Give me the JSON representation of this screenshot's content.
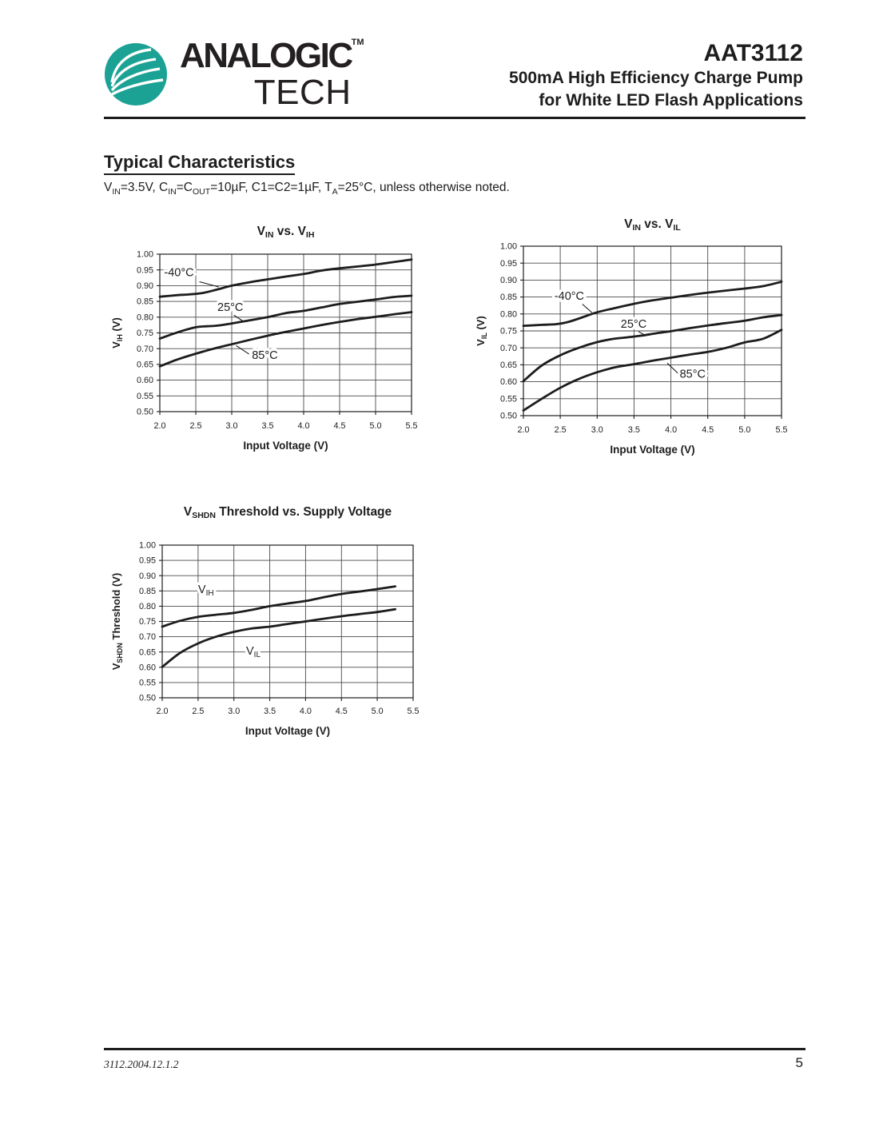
{
  "page": {
    "header": {
      "brand_line1": "ANALOGIC",
      "brand_tm": "TM",
      "brand_line2": "TECH",
      "logo_color": "#1BA295",
      "part_number": "AAT3112",
      "subtitle_line1": "500mA High Efficiency Charge Pump",
      "subtitle_line2": "for White LED Flash Applications"
    },
    "section": {
      "title": "Typical Characteristics",
      "conditions": "V~IN~=3.5V, C~IN~=C~OUT~=10µF, C1=C2=1µF, T~A~=25°C, unless otherwise noted."
    },
    "footer": {
      "doc_code": "3112.2004.12.1.2",
      "page_number": "5"
    }
  },
  "chart_data": [
    {
      "type": "line",
      "title": "V~IN~ vs. V~IH~",
      "xlabel": "Input Voltage (V)",
      "ylabel": "V~IH~ (V)",
      "xlim": [
        2.0,
        5.5
      ],
      "ylim": [
        0.5,
        1.0
      ],
      "xticks": [
        "2.0",
        "2.5",
        "3.0",
        "3.5",
        "4.0",
        "4.5",
        "5.0",
        "5.5"
      ],
      "yticks": [
        "1.00",
        "0.95",
        "0.90",
        "0.85",
        "0.80",
        "0.75",
        "0.70",
        "0.65",
        "0.60",
        "0.55",
        "0.50"
      ],
      "grid": true,
      "legend_position": "inline-labels",
      "series": [
        {
          "name": "-40°C",
          "points": [
            [
              2.0,
              0.865
            ],
            [
              2.25,
              0.87
            ],
            [
              2.4,
              0.872
            ],
            [
              2.6,
              0.877
            ],
            [
              2.8,
              0.888
            ],
            [
              3.0,
              0.9
            ],
            [
              3.25,
              0.911
            ],
            [
              3.5,
              0.92
            ],
            [
              3.75,
              0.929
            ],
            [
              4.0,
              0.937
            ],
            [
              4.25,
              0.948
            ],
            [
              4.5,
              0.955
            ],
            [
              4.75,
              0.961
            ],
            [
              5.0,
              0.967
            ],
            [
              5.25,
              0.975
            ],
            [
              5.5,
              0.983
            ]
          ]
        },
        {
          "name": "25°C",
          "points": [
            [
              2.0,
              0.732
            ],
            [
              2.25,
              0.752
            ],
            [
              2.5,
              0.768
            ],
            [
              2.65,
              0.771
            ],
            [
              2.8,
              0.773
            ],
            [
              3.0,
              0.78
            ],
            [
              3.25,
              0.79
            ],
            [
              3.5,
              0.8
            ],
            [
              3.75,
              0.813
            ],
            [
              4.0,
              0.82
            ],
            [
              4.25,
              0.831
            ],
            [
              4.5,
              0.842
            ],
            [
              4.75,
              0.849
            ],
            [
              5.0,
              0.856
            ],
            [
              5.25,
              0.864
            ],
            [
              5.5,
              0.868
            ]
          ]
        },
        {
          "name": "85°C",
          "points": [
            [
              2.0,
              0.644
            ],
            [
              2.25,
              0.666
            ],
            [
              2.5,
              0.684
            ],
            [
              2.75,
              0.7
            ],
            [
              3.0,
              0.714
            ],
            [
              3.25,
              0.728
            ],
            [
              3.5,
              0.741
            ],
            [
              3.75,
              0.753
            ],
            [
              4.0,
              0.764
            ],
            [
              4.25,
              0.775
            ],
            [
              4.5,
              0.785
            ],
            [
              4.75,
              0.794
            ],
            [
              5.0,
              0.801
            ],
            [
              5.25,
              0.809
            ],
            [
              5.5,
              0.816
            ]
          ]
        }
      ],
      "annotations": [
        {
          "text": "-40°C",
          "x": 2.06,
          "y": 0.93,
          "leader": [
            2.55,
            0.9125,
            2.82,
            0.896
          ]
        },
        {
          "text": "25°C",
          "x": 2.8,
          "y": 0.82,
          "leader": [
            3.03,
            0.806,
            3.16,
            0.787
          ]
        },
        {
          "text": "85°C",
          "x": 3.28,
          "y": 0.668,
          "leader": [
            3.24,
            0.683,
            3.06,
            0.71
          ]
        }
      ]
    },
    {
      "type": "line",
      "title": "V~IN~ vs. V~IL~",
      "xlabel": "Input Voltage (V)",
      "ylabel": "V~IL~ (V)",
      "xlim": [
        2.0,
        5.5
      ],
      "ylim": [
        0.5,
        1.0
      ],
      "xticks": [
        "2.0",
        "2.5",
        "3.0",
        "3.5",
        "4.0",
        "4.5",
        "5.0",
        "5.5"
      ],
      "yticks": [
        "1.00",
        "0.95",
        "0.90",
        "0.85",
        "0.80",
        "0.75",
        "0.70",
        "0.65",
        "0.60",
        "0.55",
        "0.50"
      ],
      "grid": true,
      "legend_position": "inline-labels",
      "series": [
        {
          "name": "-40°C",
          "points": [
            [
              2.0,
              0.765
            ],
            [
              2.25,
              0.768
            ],
            [
              2.45,
              0.77
            ],
            [
              2.6,
              0.776
            ],
            [
              2.8,
              0.79
            ],
            [
              3.0,
              0.805
            ],
            [
              3.25,
              0.818
            ],
            [
              3.5,
              0.83
            ],
            [
              3.75,
              0.84
            ],
            [
              4.0,
              0.848
            ],
            [
              4.25,
              0.856
            ],
            [
              4.5,
              0.863
            ],
            [
              4.75,
              0.869
            ],
            [
              5.0,
              0.875
            ],
            [
              5.25,
              0.882
            ],
            [
              5.5,
              0.895
            ]
          ]
        },
        {
          "name": "25°C",
          "points": [
            [
              2.0,
              0.602
            ],
            [
              2.25,
              0.648
            ],
            [
              2.5,
              0.678
            ],
            [
              2.75,
              0.7
            ],
            [
              3.0,
              0.717
            ],
            [
              3.2,
              0.726
            ],
            [
              3.4,
              0.731
            ],
            [
              3.6,
              0.736
            ],
            [
              3.8,
              0.743
            ],
            [
              4.0,
              0.749
            ],
            [
              4.25,
              0.758
            ],
            [
              4.5,
              0.766
            ],
            [
              4.75,
              0.773
            ],
            [
              5.0,
              0.78
            ],
            [
              5.25,
              0.79
            ],
            [
              5.5,
              0.797
            ]
          ]
        },
        {
          "name": "85°C",
          "points": [
            [
              2.0,
              0.515
            ],
            [
              2.25,
              0.55
            ],
            [
              2.5,
              0.582
            ],
            [
              2.75,
              0.608
            ],
            [
              3.0,
              0.628
            ],
            [
              3.25,
              0.643
            ],
            [
              3.5,
              0.652
            ],
            [
              3.75,
              0.662
            ],
            [
              4.0,
              0.671
            ],
            [
              4.25,
              0.68
            ],
            [
              4.5,
              0.688
            ],
            [
              4.75,
              0.7
            ],
            [
              5.0,
              0.716
            ],
            [
              5.25,
              0.727
            ],
            [
              5.5,
              0.753
            ]
          ]
        }
      ],
      "annotations": [
        {
          "text": "-40°C",
          "x": 2.42,
          "y": 0.842,
          "leader": [
            2.8,
            0.829,
            2.93,
            0.804
          ]
        },
        {
          "text": "25°C",
          "x": 3.32,
          "y": 0.76,
          "leader": [
            3.56,
            0.748,
            3.66,
            0.736
          ]
        },
        {
          "text": "85°C",
          "x": 4.12,
          "y": 0.612,
          "leader": [
            3.95,
            0.655,
            4.1,
            0.624
          ]
        }
      ]
    },
    {
      "type": "line",
      "title": "V~SHDN~ Threshold vs. Supply Voltage",
      "xlabel": "Input Voltage (V)",
      "ylabel": "V~SHDN~ Threshold (V)",
      "xlim": [
        2.0,
        5.5
      ],
      "ylim": [
        0.5,
        1.0
      ],
      "xticks": [
        "2.0",
        "2.5",
        "3.0",
        "3.5",
        "4.0",
        "4.5",
        "5.0",
        "5.5"
      ],
      "yticks": [
        "1.00",
        "0.95",
        "0.90",
        "0.85",
        "0.80",
        "0.75",
        "0.70",
        "0.65",
        "0.60",
        "0.55",
        "0.50"
      ],
      "grid": true,
      "legend_position": "inline-labels",
      "series": [
        {
          "name": "V_IH",
          "points": [
            [
              2.0,
              0.733
            ],
            [
              2.25,
              0.752
            ],
            [
              2.5,
              0.765
            ],
            [
              2.75,
              0.772
            ],
            [
              3.0,
              0.778
            ],
            [
              3.25,
              0.788
            ],
            [
              3.5,
              0.8
            ],
            [
              3.75,
              0.809
            ],
            [
              4.0,
              0.817
            ],
            [
              4.25,
              0.829
            ],
            [
              4.5,
              0.84
            ],
            [
              4.75,
              0.848
            ],
            [
              5.0,
              0.856
            ],
            [
              5.25,
              0.865
            ]
          ]
        },
        {
          "name": "V_IL",
          "points": [
            [
              2.0,
              0.601
            ],
            [
              2.25,
              0.647
            ],
            [
              2.5,
              0.678
            ],
            [
              2.75,
              0.7
            ],
            [
              3.0,
              0.716
            ],
            [
              3.25,
              0.727
            ],
            [
              3.5,
              0.733
            ],
            [
              3.75,
              0.742
            ],
            [
              4.0,
              0.75
            ],
            [
              4.25,
              0.759
            ],
            [
              4.5,
              0.767
            ],
            [
              4.75,
              0.774
            ],
            [
              5.0,
              0.781
            ],
            [
              5.25,
              0.79
            ]
          ]
        }
      ],
      "annotations": [
        {
          "text": "V~IH~",
          "x": 2.5,
          "y": 0.843
        },
        {
          "text": "V~IL~",
          "x": 3.17,
          "y": 0.642
        }
      ]
    }
  ]
}
